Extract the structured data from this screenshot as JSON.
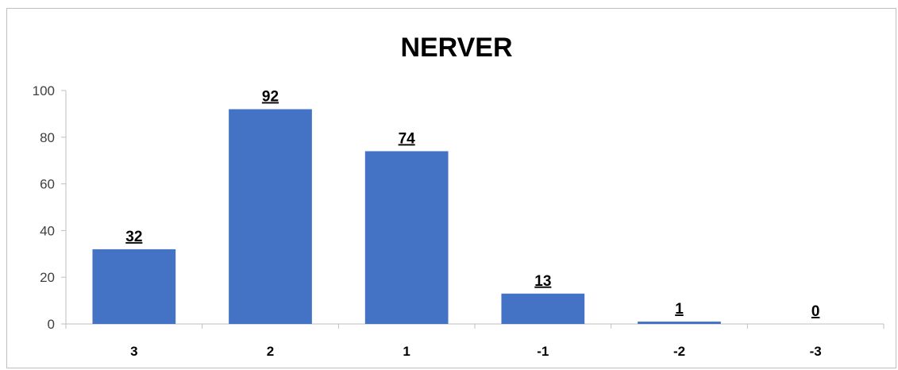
{
  "chart_data": {
    "type": "bar",
    "title": "NERVER",
    "categories": [
      "3",
      "2",
      "1",
      "-1",
      "-2",
      "-3"
    ],
    "values": [
      32,
      92,
      74,
      13,
      1,
      0
    ],
    "data_labels": [
      "32",
      "92",
      "74",
      "13",
      "1",
      "0"
    ],
    "ylim": [
      0,
      100
    ],
    "yticks": [
      "0",
      "20",
      "40",
      "60",
      "80",
      "100"
    ],
    "ytick_values": [
      0,
      20,
      40,
      60,
      80,
      100
    ],
    "xlabel": "",
    "ylabel": "",
    "grid": false,
    "legend": "none",
    "bar_color": "#4472c4",
    "axis_color": "#bfbfbf"
  }
}
